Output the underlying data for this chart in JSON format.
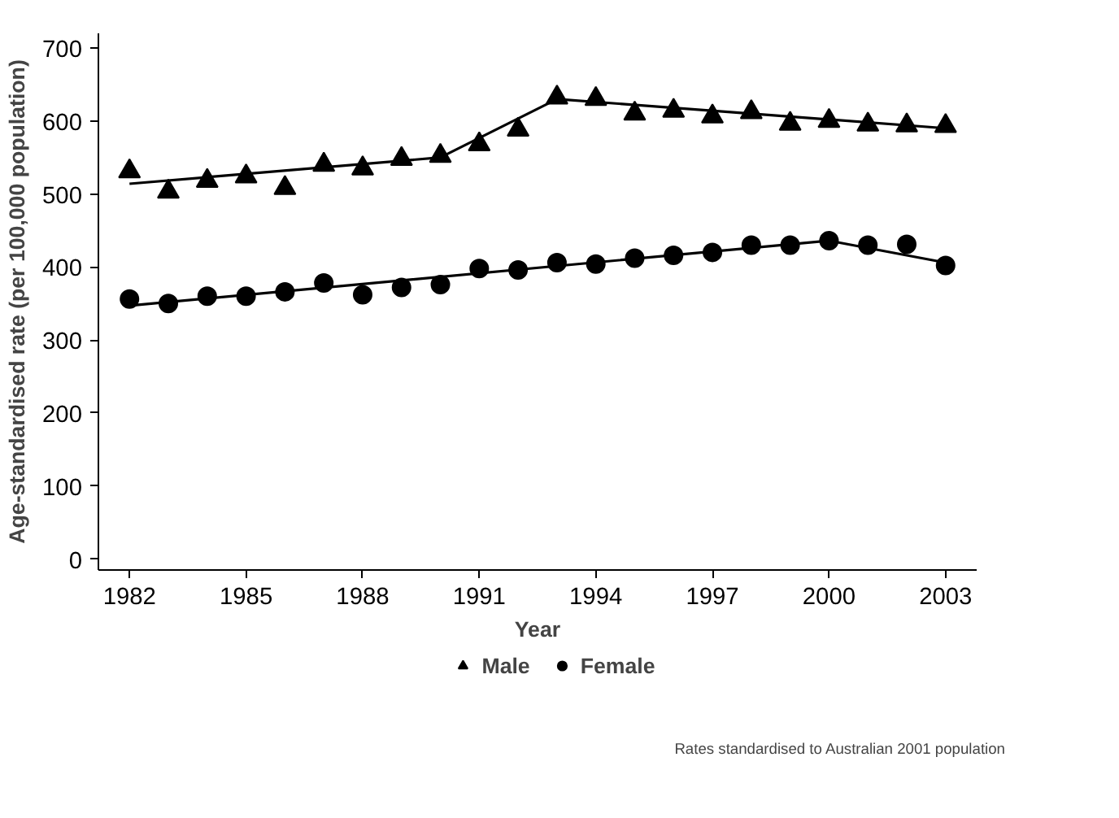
{
  "chart_data": {
    "type": "scatter",
    "xlabel": "Year",
    "ylabel": "Age-standardised rate (per 100,000 population)",
    "x": [
      1982,
      1983,
      1984,
      1985,
      1986,
      1987,
      1988,
      1989,
      1990,
      1991,
      1992,
      1993,
      1994,
      1995,
      1996,
      1997,
      1998,
      1999,
      2000,
      2001,
      2002,
      2003
    ],
    "series": [
      {
        "name": "Male",
        "color": "#000000",
        "marker": "triangle",
        "values": [
          531,
          503,
          518,
          524,
          508,
          540,
          535,
          548,
          552,
          568,
          588,
          632,
          630,
          610,
          614,
          606,
          612,
          596,
          600,
          595,
          594,
          593
        ]
      },
      {
        "name": "Female",
        "color": "#000000",
        "marker": "circle",
        "values": [
          356,
          350,
          360,
          360,
          366,
          378,
          362,
          372,
          376,
          398,
          396,
          406,
          404,
          412,
          416,
          420,
          430,
          430,
          436,
          430,
          431,
          402
        ]
      },
      {
        "type": "line",
        "color": "#000000",
        "marker": "none",
        "x": [
          1982,
          1990,
          1993,
          2003
        ],
        "values": [
          514,
          550,
          630,
          590
        ]
      },
      {
        "type": "line",
        "color": "#000000",
        "marker": "none",
        "x": [
          1982,
          2000,
          2003
        ],
        "values": [
          347,
          436,
          406
        ]
      }
    ],
    "xlim": [
      1981.2,
      2003.8
    ],
    "ylim": [
      -15,
      720
    ],
    "xticks": [
      1982,
      1985,
      1988,
      1991,
      1994,
      1997,
      2000,
      2003
    ],
    "yticks": [
      0,
      100,
      200,
      300,
      400,
      500,
      600,
      700
    ],
    "grid": false,
    "legend": "bottom",
    "annotations": [
      "Rates standardised to Australian 2001 population"
    ]
  }
}
